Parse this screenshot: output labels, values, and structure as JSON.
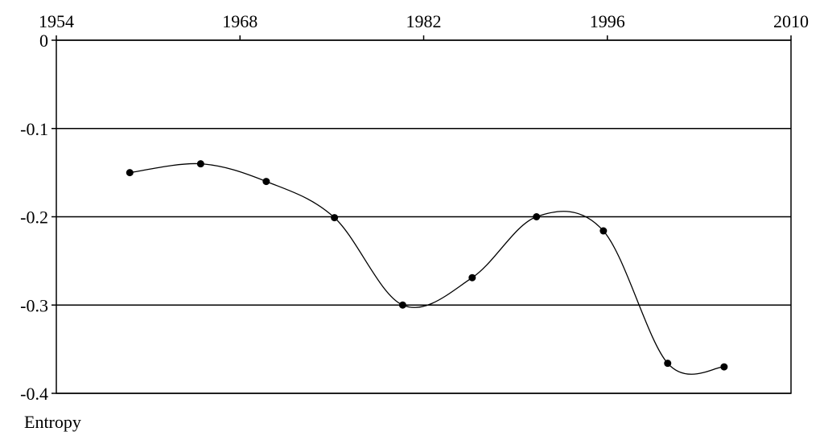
{
  "chart_data": {
    "type": "line",
    "y_label": "Entropy",
    "x": [
      1959.6,
      1965.0,
      1970.0,
      1975.2,
      1980.4,
      1985.7,
      1990.6,
      1995.7,
      2000.6,
      2004.9
    ],
    "values": [
      -0.15,
      -0.14,
      -0.16,
      -0.201,
      -0.3,
      -0.269,
      -0.2,
      -0.216,
      -0.366,
      -0.37
    ],
    "color": "#000000",
    "xlim": [
      1954,
      2010
    ],
    "xticks": [
      1954,
      1968,
      1982,
      1996,
      2010
    ],
    "ylim": [
      -0.4,
      0
    ],
    "yticks": [
      0,
      -0.1,
      -0.2,
      -0.3,
      -0.4
    ],
    "grid": true,
    "smooth": true
  }
}
